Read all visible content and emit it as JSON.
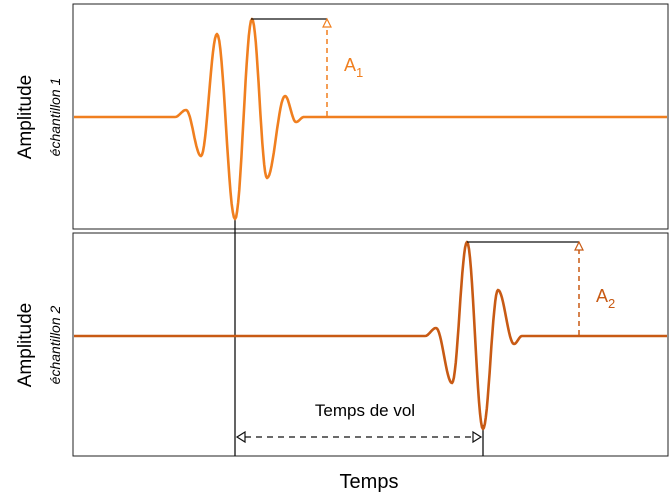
{
  "panel1": {
    "ylabel": "Amplitude",
    "sublabel": "échantillon 1",
    "amp_label_main": "A",
    "amp_label_sub": "1",
    "color": "#f07f1f"
  },
  "panel2": {
    "ylabel": "Amplitude",
    "sublabel": "échantillon 2",
    "amp_label_main": "A",
    "amp_label_sub": "2",
    "color": "#c85a14"
  },
  "tof_label": "Temps de vol",
  "xlabel": "Temps"
}
